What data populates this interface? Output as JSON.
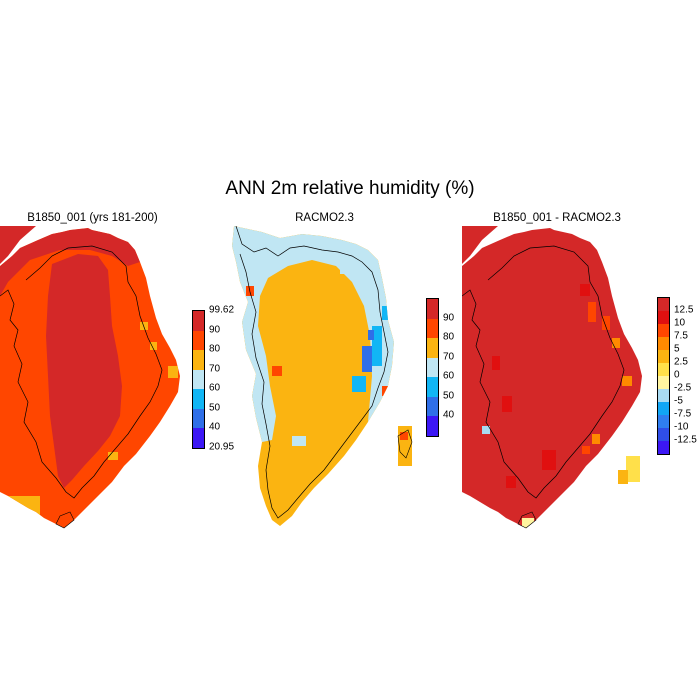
{
  "title": "ANN 2m relative humidity (%)",
  "panels": [
    {
      "title": "B1850_001 (yrs 181-200)",
      "colorbar": {
        "colors": [
          "#3c17f5",
          "#2f6fe8",
          "#11b6f5",
          "#c0e6f3",
          "#fbb411",
          "#ff4600",
          "#d42828"
        ],
        "labels": [
          "20.95",
          "40",
          "50",
          "60",
          "70",
          "80",
          "90",
          "99.62"
        ]
      }
    },
    {
      "title": "RACMO2.3",
      "colorbar": {
        "colors": [
          "#3c17f5",
          "#2f6fe8",
          "#11b6f5",
          "#c0e6f3",
          "#fbb411",
          "#ff4600",
          "#d42828"
        ],
        "labels": [
          "40",
          "50",
          "60",
          "70",
          "80",
          "90"
        ]
      }
    },
    {
      "title": "B1850_001 - RACMO2.3",
      "colorbar": {
        "colors": [
          "#3c17f5",
          "#2f4ee8",
          "#2f7ef0",
          "#11a6f5",
          "#a9dbf2",
          "#fff5a0",
          "#ffe04a",
          "#fbb411",
          "#ff8a00",
          "#ff4600",
          "#e01010",
          "#d42828"
        ],
        "labels": [
          "-12.5",
          "-10",
          "-7.5",
          "-5",
          "-2.5",
          "0",
          "2.5",
          "5",
          "7.5",
          "10",
          "12.5"
        ]
      }
    }
  ]
}
